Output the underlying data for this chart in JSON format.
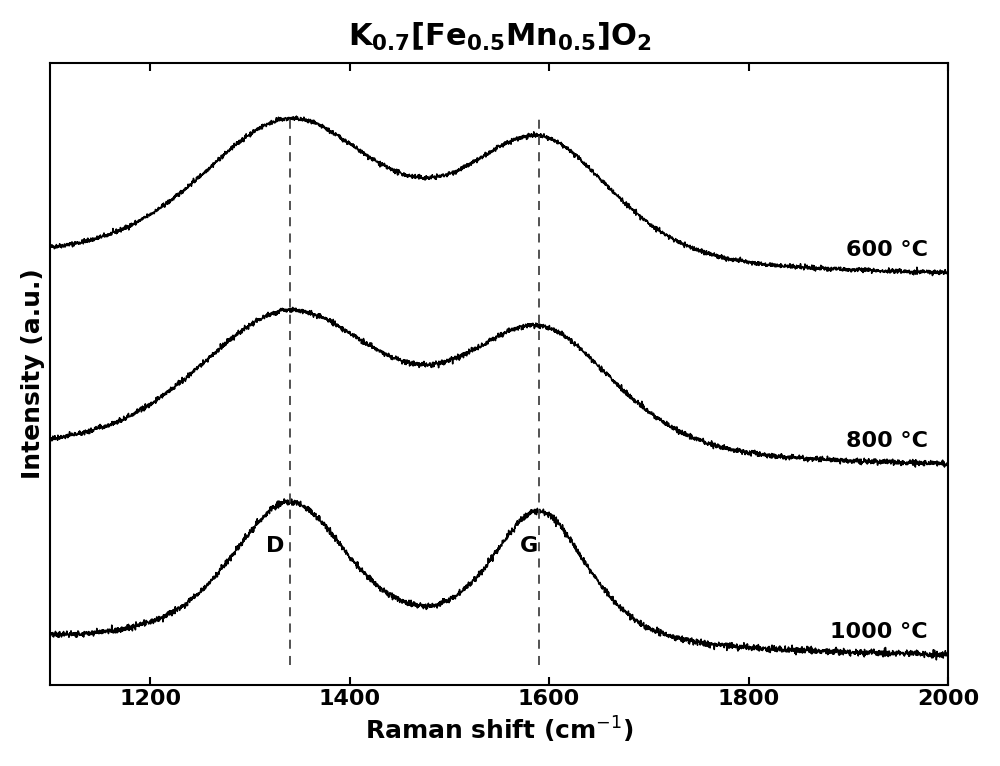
{
  "title": "$\\mathbf{K_{0.7}[Fe_{0.5}Mn_{0.5}]O_2}$",
  "xlabel": "Raman shift (cm$^{-1}$)",
  "ylabel": "Intensity (a.u.)",
  "xmin": 1100,
  "xmax": 2000,
  "d_band": 1340,
  "g_band": 1590,
  "labels": [
    "600 °C",
    "800 °C",
    "1000 °C"
  ],
  "offsets": [
    2.0,
    1.0,
    0.0
  ],
  "bg_color": "#ffffff",
  "line_color": "#000000",
  "xticks": [
    1200,
    1400,
    1600,
    1800,
    2000
  ],
  "title_fontsize": 22,
  "label_fontsize": 18,
  "tick_fontsize": 16,
  "annot_fontsize": 16,
  "legend_fontsize": 16
}
